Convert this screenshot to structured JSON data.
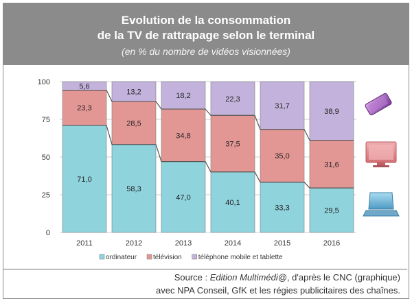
{
  "header": {
    "title_line1": "Evolution de la consommation",
    "title_line2": "de la TV de rattrapage selon le terminal",
    "subtitle": "(en % du nombre de vidéos visionnées)"
  },
  "chart_data": {
    "type": "bar",
    "stacked": true,
    "categories": [
      "2011",
      "2012",
      "2013",
      "2014",
      "2015",
      "2016"
    ],
    "series": [
      {
        "name": "ordinateur",
        "color": "#8fd3dd",
        "values": [
          71.0,
          58.3,
          47.0,
          40.1,
          33.3,
          29.5
        ]
      },
      {
        "name": "télévision",
        "color": "#e39795",
        "values": [
          23.3,
          28.5,
          34.8,
          37.5,
          35.0,
          31.6
        ]
      },
      {
        "name": "téléphone mobile et tablette",
        "color": "#c3b3dc",
        "values": [
          5.6,
          13.2,
          18.2,
          22.3,
          31.7,
          38.9
        ]
      }
    ],
    "data_labels": [
      [
        "71,0",
        "58,3",
        "47,0",
        "40,1",
        "33,3",
        "29,5"
      ],
      [
        "23,3",
        "28,5",
        "34,8",
        "37,5",
        "35,0",
        "31,6"
      ],
      [
        "5,6",
        "13,2",
        "18,2",
        "22,3",
        "31,7",
        "38,9"
      ]
    ],
    "ylim": [
      0,
      100
    ],
    "yticks": [
      "0",
      "25",
      "50",
      "75",
      "100"
    ],
    "grid": "horizontal",
    "legend_position": "bottom",
    "device_icons": [
      "mobile-tablet-icon",
      "tv-icon",
      "laptop-icon"
    ]
  },
  "footer": {
    "source_prefix": "Source : ",
    "source_italic": "Edition Multimédi@",
    "source_suffix": ", d'après le CNC (graphique)",
    "line2": "avec NPA Conseil, GfK et les régies publicitaires des chaînes."
  }
}
